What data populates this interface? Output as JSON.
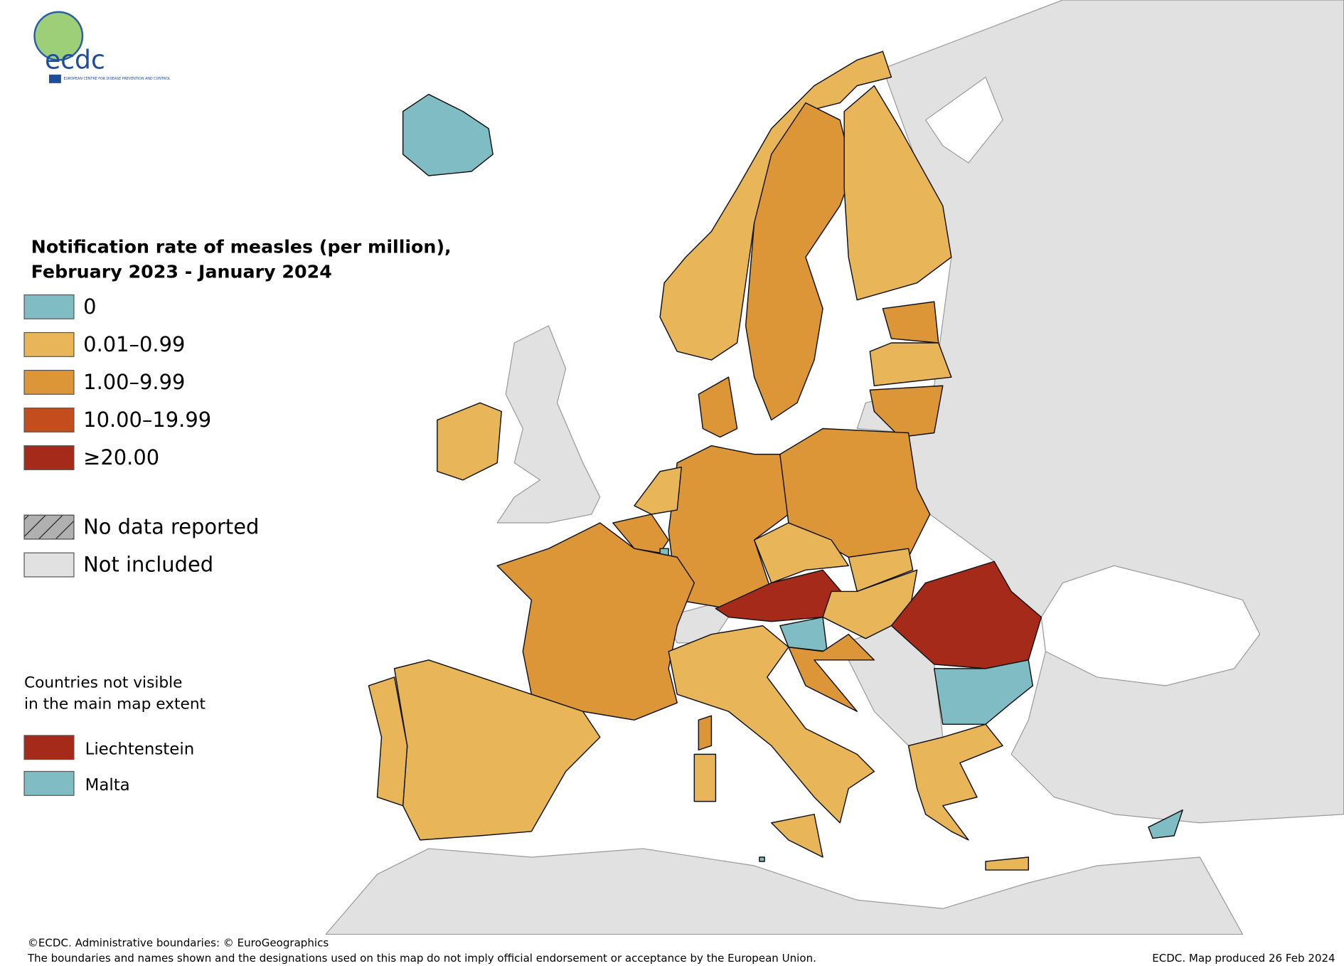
{
  "logo": {
    "name": "ecdc",
    "subtitle": "EUROPEAN CENTRE FOR DISEASE PREVENTION AND CONTROL"
  },
  "legend": {
    "title": [
      "Notification rate of measles (per million),",
      "February 2023 - January 2024"
    ],
    "classes": [
      {
        "label": "0",
        "color": "#7fbcc4"
      },
      {
        "label": "0.01–0.99",
        "color": "#e8b658"
      },
      {
        "label": "1.00–9.99",
        "color": "#dc9537"
      },
      {
        "label": "10.00–19.99",
        "color": "#c34d1d"
      },
      {
        "label": "≥20.00",
        "color": "#a62a19"
      }
    ],
    "no_data": {
      "label": "No data reported",
      "color": "#b0b0b0"
    },
    "not_included": {
      "label": "Not included",
      "color": "#e1e1e1"
    }
  },
  "inset": {
    "title": [
      "Countries not visible",
      "in the main map extent"
    ],
    "items": [
      {
        "label": "Liechtenstein",
        "color": "#a62a19"
      },
      {
        "label": "Malta",
        "color": "#7fbcc4"
      }
    ]
  },
  "footer": {
    "credit": "©ECDC. Administrative boundaries: © EuroGeographics",
    "disclaimer": "The boundaries and names shown and the designations used on this map do not imply official endorsement or acceptance by the European Union.",
    "produced": "ECDC. Map produced 26 Feb 2024"
  }
}
